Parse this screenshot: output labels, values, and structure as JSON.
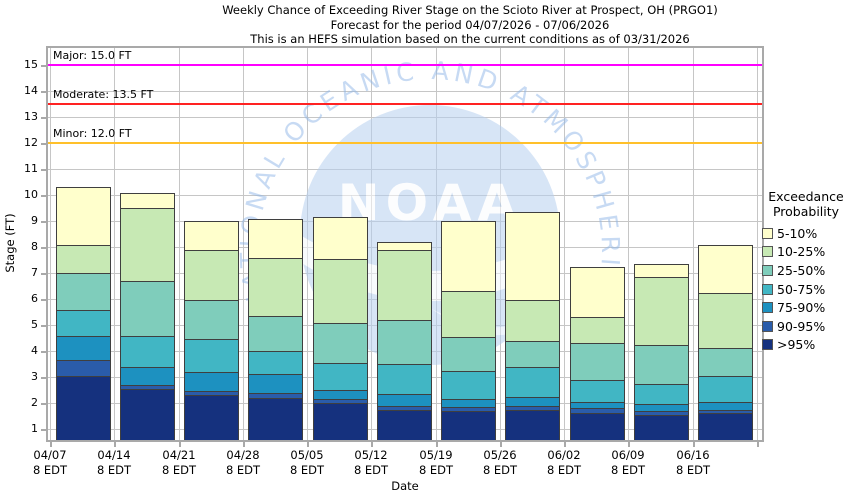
{
  "watermark": {
    "acronym": "NOAA",
    "text": "NATIONAL OCEANIC AND ATMOSPHERIC ADMINISTRATION"
  },
  "chart_data": {
    "type": "bar",
    "stacked": true,
    "title_lines": [
      "Weekly Chance of Exceeding River Stage on the Scioto River at Prospect, OH (PRGO1)",
      "Forecast for the period 04/07/2026 - 07/06/2026",
      "This is an HEFS simulation based on the current conditions as of 03/31/2026"
    ],
    "xlabel": "Date",
    "ylabel": "Stage (FT)",
    "ylim": [
      0.58,
      15.66
    ],
    "y_ticks": [
      1,
      2,
      3,
      4,
      5,
      6,
      7,
      8,
      9,
      10,
      11,
      12,
      13,
      14,
      15
    ],
    "grid": true,
    "legend_position": "right",
    "legend_title": [
      "Exceedance",
      "Probability"
    ],
    "bands": [
      {
        "label": "5-10%",
        "color": "#ffffcc"
      },
      {
        "label": "10-25%",
        "color": "#c7e9b4"
      },
      {
        "label": "25-50%",
        "color": "#7fcdbb"
      },
      {
        "label": "50-75%",
        "color": "#41b6c4"
      },
      {
        "label": "75-90%",
        "color": "#1d91c0"
      },
      {
        "label": "90-95%",
        "color": "#2a5caa"
      },
      {
        "label": ">95%",
        "color": "#15317e"
      }
    ],
    "categories": [
      "04/07",
      "04/14",
      "04/21",
      "04/28",
      "05/05",
      "05/12",
      "05/19",
      "05/26",
      "06/02",
      "06/09",
      "06/16"
    ],
    "category_sublabel": "8 EDT",
    "thresholds": [
      {
        "name": "Major",
        "label": "Major: 15.0 FT",
        "stage": 15.0,
        "color": "#ff00ff"
      },
      {
        "name": "Moderate",
        "label": "Moderate: 13.5 FT",
        "stage": 13.5,
        "color": "#ff2222"
      },
      {
        "name": "Minor",
        "label": "Minor: 12.0 FT",
        "stage": 12.0,
        "color": "#ffc02a"
      }
    ],
    "bars": [
      {
        "date": "04/07",
        "band_top_stage": {
          ">95%": 3.05,
          "90-95%": 3.65,
          "75-90%": 4.6,
          "50-75%": 5.6,
          "25-50%": 7.0,
          "10-25%": 8.1,
          "5-10%": 10.3
        }
      },
      {
        "date": "04/14",
        "band_top_stage": {
          ">95%": 2.55,
          "90-95%": 2.7,
          "75-90%": 3.4,
          "50-75%": 4.6,
          "25-50%": 6.7,
          "10-25%": 9.5,
          "5-10%": 10.1
        }
      },
      {
        "date": "04/21",
        "band_top_stage": {
          ">95%": 2.3,
          "90-95%": 2.45,
          "75-90%": 3.2,
          "50-75%": 4.45,
          "25-50%": 5.95,
          "10-25%": 7.9,
          "5-10%": 9.0
        }
      },
      {
        "date": "04/28",
        "band_top_stage": {
          ">95%": 2.2,
          "90-95%": 2.4,
          "75-90%": 3.1,
          "50-75%": 4.0,
          "25-50%": 5.35,
          "10-25%": 7.6,
          "5-10%": 9.1
        }
      },
      {
        "date": "05/05",
        "band_top_stage": {
          ">95%": 2.0,
          "90-95%": 2.15,
          "75-90%": 2.5,
          "50-75%": 3.55,
          "25-50%": 5.1,
          "10-25%": 7.55,
          "5-10%": 9.15
        }
      },
      {
        "date": "05/12",
        "band_top_stage": {
          ">95%": 1.75,
          "90-95%": 1.9,
          "75-90%": 2.35,
          "50-75%": 3.5,
          "25-50%": 5.2,
          "10-25%": 7.9,
          "5-10%": 8.2
        }
      },
      {
        "date": "05/19",
        "band_top_stage": {
          ">95%": 1.7,
          "90-95%": 1.85,
          "75-90%": 2.15,
          "50-75%": 3.25,
          "25-50%": 4.55,
          "10-25%": 6.3,
          "5-10%": 9.0
        }
      },
      {
        "date": "05/26",
        "band_top_stage": {
          ">95%": 1.75,
          "90-95%": 1.9,
          "75-90%": 2.25,
          "50-75%": 3.4,
          "25-50%": 4.4,
          "10-25%": 5.95,
          "5-10%": 9.35
        }
      },
      {
        "date": "06/02",
        "band_top_stage": {
          ">95%": 1.6,
          "90-95%": 1.8,
          "75-90%": 2.05,
          "50-75%": 2.9,
          "25-50%": 4.3,
          "10-25%": 5.3,
          "5-10%": 7.25
        }
      },
      {
        "date": "06/09",
        "band_top_stage": {
          ">95%": 1.55,
          "90-95%": 1.7,
          "75-90%": 1.95,
          "50-75%": 2.75,
          "25-50%": 4.25,
          "10-25%": 6.85,
          "5-10%": 7.35
        }
      },
      {
        "date": "06/16",
        "band_top_stage": {
          ">95%": 1.6,
          "90-95%": 1.75,
          "75-90%": 2.05,
          "50-75%": 3.05,
          "25-50%": 4.1,
          "10-25%": 6.25,
          "5-10%": 8.1
        }
      }
    ]
  }
}
